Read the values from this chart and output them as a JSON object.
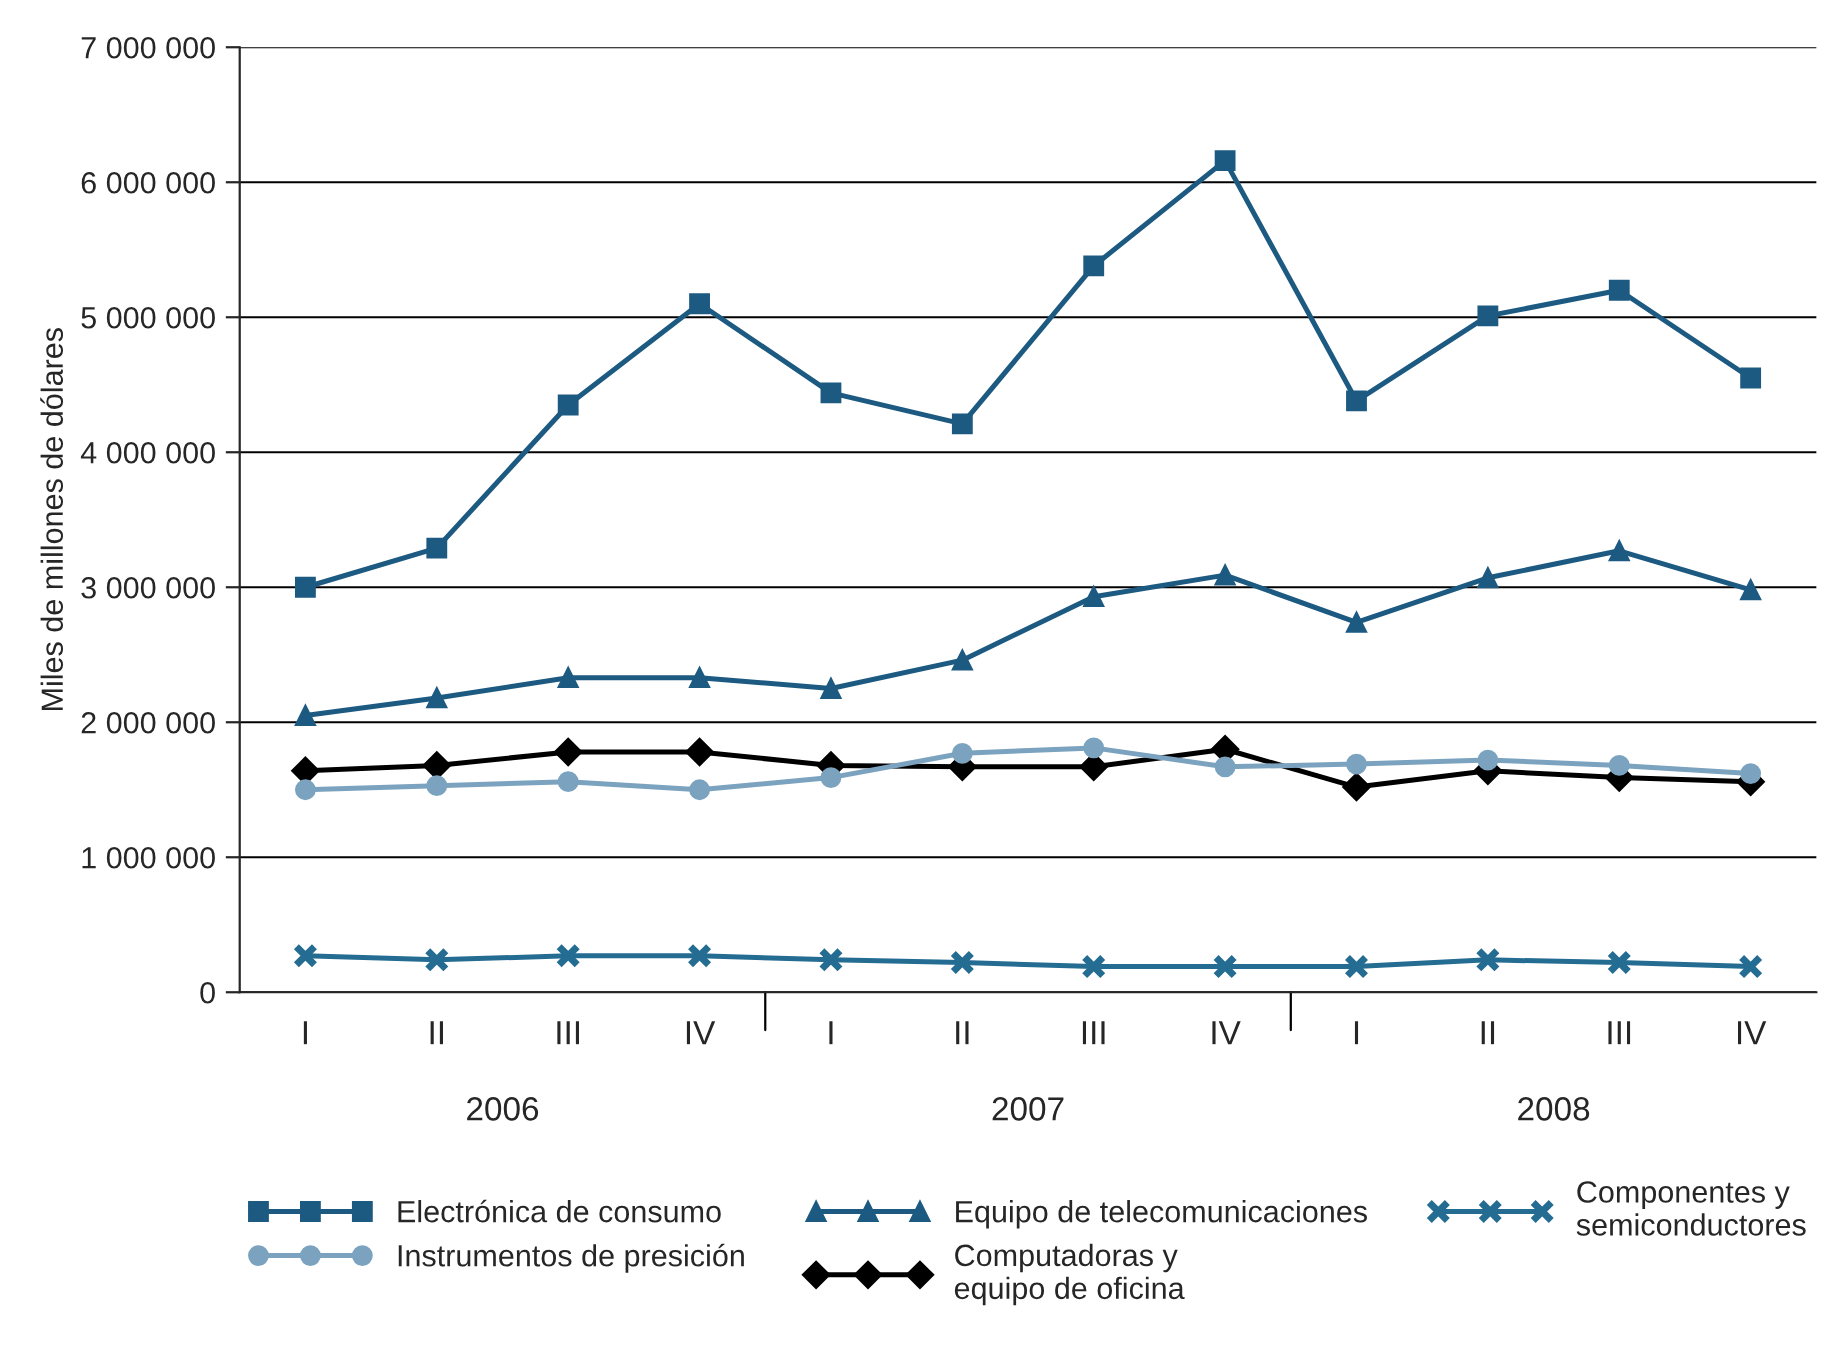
{
  "chart_data": {
    "type": "line",
    "ylabel": "Miles de millones de dólares",
    "categories": [
      "I",
      "II",
      "III",
      "IV",
      "I",
      "II",
      "III",
      "IV",
      "I",
      "II",
      "III",
      "IV"
    ],
    "series": [
      {
        "name": "Electrónica de consumo",
        "color": "#1d5a82",
        "marker": "square",
        "values": [
          3000000,
          3290000,
          4350000,
          5100000,
          4440000,
          4210000,
          5380000,
          6160000,
          4380000,
          5010000,
          5200000,
          4550000
        ]
      },
      {
        "name": "Equipo de telecomunicaciones",
        "color": "#1d5a82",
        "marker": "triangle",
        "values": [
          2050000,
          2180000,
          2330000,
          2330000,
          2250000,
          2460000,
          2930000,
          3090000,
          2740000,
          3070000,
          3270000,
          2980000
        ]
      },
      {
        "name": "Componentes y semiconductores",
        "color": "#246c92",
        "marker": "cross",
        "values": [
          270000,
          240000,
          270000,
          270000,
          240000,
          220000,
          190000,
          190000,
          190000,
          240000,
          220000,
          190000
        ]
      },
      {
        "name": "Instrumentos de presición",
        "color": "#7ba3bf",
        "marker": "circle",
        "values": [
          1500000,
          1530000,
          1560000,
          1500000,
          1590000,
          1770000,
          1810000,
          1670000,
          1690000,
          1720000,
          1680000,
          1620000
        ]
      },
      {
        "name": "Computadoras y equipo de oficina",
        "color": "#000000",
        "marker": "diamond",
        "values": [
          1640000,
          1680000,
          1780000,
          1780000,
          1680000,
          1670000,
          1670000,
          1800000,
          1520000,
          1640000,
          1590000,
          1560000
        ]
      }
    ],
    "ylim": [
      0,
      7000000
    ],
    "yticks": [
      {
        "value": 0,
        "label": "0"
      },
      {
        "value": 1000000,
        "label": "1 000 000"
      },
      {
        "value": 2000000,
        "label": "2 000 000"
      },
      {
        "value": 3000000,
        "label": "3 000 000"
      },
      {
        "value": 4000000,
        "label": "4 000 000"
      },
      {
        "value": 5000000,
        "label": "5 000 000"
      },
      {
        "value": 6000000,
        "label": "6 000 000"
      },
      {
        "value": 7000000,
        "label": "7 000 000"
      }
    ],
    "annotations": [
      "2006",
      "2007",
      "2008"
    ],
    "grid": "y",
    "legend": "bottom",
    "line_style": "solid"
  }
}
